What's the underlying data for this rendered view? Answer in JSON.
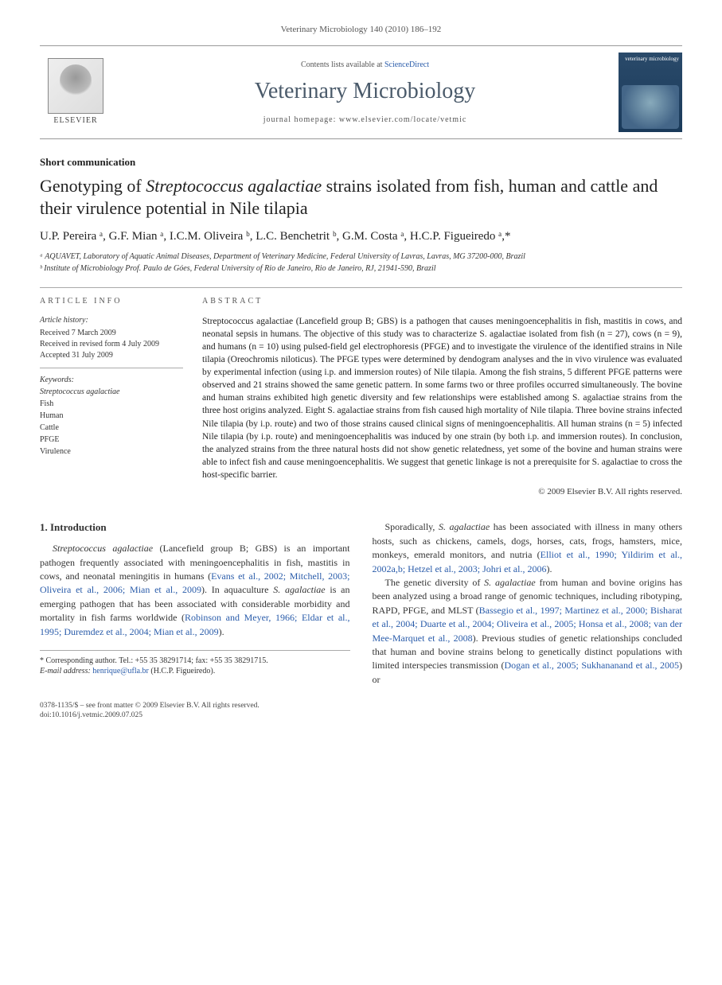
{
  "running_head": "Veterinary Microbiology 140 (2010) 186–192",
  "masthead": {
    "contents_prefix": "Contents lists available at ",
    "sciencedirect": "ScienceDirect",
    "journal_name": "Veterinary Microbiology",
    "homepage_prefix": "journal homepage: ",
    "homepage_url": "www.elsevier.com/locate/vetmic",
    "publisher_label": "ELSEVIER",
    "cover_label": "veterinary microbiology"
  },
  "article": {
    "type": "Short communication",
    "title_pre": "Genotyping of ",
    "title_species": "Streptococcus agalactiae",
    "title_post": " strains isolated from fish, human and cattle and their virulence potential in Nile tilapia",
    "authors_line": "U.P. Pereira ᵃ, G.F. Mian ᵃ, I.C.M. Oliveira ᵇ, L.C. Benchetrit ᵇ, G.M. Costa ᵃ, H.C.P. Figueiredo ᵃ,*",
    "affiliations": [
      "ᵃ AQUAVET, Laboratory of Aquatic Animal Diseases, Department of Veterinary Medicine, Federal University of Lavras, Lavras, MG 37200-000, Brazil",
      "ᵇ Institute of Microbiology Prof. Paulo de Góes, Federal University of Rio de Janeiro, Rio de Janeiro, RJ, 21941-590, Brazil"
    ]
  },
  "info": {
    "heading": "ARTICLE INFO",
    "history_label": "Article history:",
    "received": "Received 7 March 2009",
    "revised": "Received in revised form 4 July 2009",
    "accepted": "Accepted 31 July 2009",
    "keywords_label": "Keywords:",
    "keywords": [
      "Streptococcus agalactiae",
      "Fish",
      "Human",
      "Cattle",
      "PFGE",
      "Virulence"
    ]
  },
  "abstract": {
    "heading": "ABSTRACT",
    "text": "Streptococcus agalactiae (Lancefield group B; GBS) is a pathogen that causes meningoencephalitis in fish, mastitis in cows, and neonatal sepsis in humans. The objective of this study was to characterize S. agalactiae isolated from fish (n = 27), cows (n = 9), and humans (n = 10) using pulsed-field gel electrophoresis (PFGE) and to investigate the virulence of the identified strains in Nile tilapia (Oreochromis niloticus). The PFGE types were determined by dendogram analyses and the in vivo virulence was evaluated by experimental infection (using i.p. and immersion routes) of Nile tilapia. Among the fish strains, 5 different PFGE patterns were observed and 21 strains showed the same genetic pattern. In some farms two or three profiles occurred simultaneously. The bovine and human strains exhibited high genetic diversity and few relationships were established among S. agalactiae strains from the three host origins analyzed. Eight S. agalactiae strains from fish caused high mortality of Nile tilapia. Three bovine strains infected Nile tilapia (by i.p. route) and two of those strains caused clinical signs of meningoencephalitis. All human strains (n = 5) infected Nile tilapia (by i.p. route) and meningoencephalitis was induced by one strain (by both i.p. and immersion routes). In conclusion, the analyzed strains from the three natural hosts did not show genetic relatedness, yet some of the bovine and human strains were able to infect fish and cause meningoencephalitis. We suggest that genetic linkage is not a prerequisite for S. agalactiae to cross the host-specific barrier.",
    "copyright": "© 2009 Elsevier B.V. All rights reserved."
  },
  "body": {
    "section_heading": "1. Introduction",
    "col1_p1_a": "Streptococcus agalactiae",
    "col1_p1_b": " (Lancefield group B; GBS) is an important pathogen frequently associated with meningoencephalitis in fish, mastitis in cows, and neonatal meningitis in humans (",
    "col1_p1_ref1": "Evans et al., 2002; Mitchell, 2003; Oliveira et al., 2006; Mian et al., 2009",
    "col1_p1_c": "). In aquaculture ",
    "col1_p1_d": "S. agalactiae",
    "col1_p1_e": " is an emerging pathogen that has been associated with considerable morbidity and mortality in fish farms worldwide (",
    "col1_p1_ref2": "Robinson and Meyer, 1966; Eldar et al., 1995; Duremdez et al., 2004; Mian et al., 2009",
    "col1_p1_f": ").",
    "col2_p1_a": "Sporadically, ",
    "col2_p1_b": "S. agalactiae",
    "col2_p1_c": " has been associated with illness in many others hosts, such as chickens, camels, dogs, horses, cats, frogs, hamsters, mice, monkeys, emerald monitors, and nutria (",
    "col2_p1_ref1": "Elliot et al., 1990; Yildirim et al., 2002a,b; Hetzel et al., 2003; Johri et al., 2006",
    "col2_p1_d": ").",
    "col2_p2_a": "The genetic diversity of ",
    "col2_p2_b": "S. agalactiae",
    "col2_p2_c": " from human and bovine origins has been analyzed using a broad range of genomic techniques, including ribotyping, RAPD, PFGE, and MLST (",
    "col2_p2_ref1": "Bassegio et al., 1997; Martinez et al., 2000; Bisharat et al., 2004; Duarte et al., 2004; Oliveira et al., 2005; Honsa et al., 2008; van der Mee-Marquet et al., 2008",
    "col2_p2_d": "). Previous studies of genetic relationships concluded that human and bovine strains belong to genetically distinct populations with limited interspecies transmission (",
    "col2_p2_ref2": "Dogan et al., 2005; Sukhananand et al., 2005",
    "col2_p2_e": ") or"
  },
  "footnote": {
    "corr": "* Corresponding author. Tel.: +55 35 38291714; fax: +55 35 38291715.",
    "email_label": "E-mail address: ",
    "email": "henrique@ufla.br",
    "email_who": " (H.C.P. Figueiredo)."
  },
  "footer": {
    "issn": "0378-1135/$ – see front matter © 2009 Elsevier B.V. All rights reserved.",
    "doi": "doi:10.1016/j.vetmic.2009.07.025"
  },
  "colors": {
    "link": "#2a5caa",
    "text": "#333333",
    "heading_gray": "#4a5a6a"
  }
}
